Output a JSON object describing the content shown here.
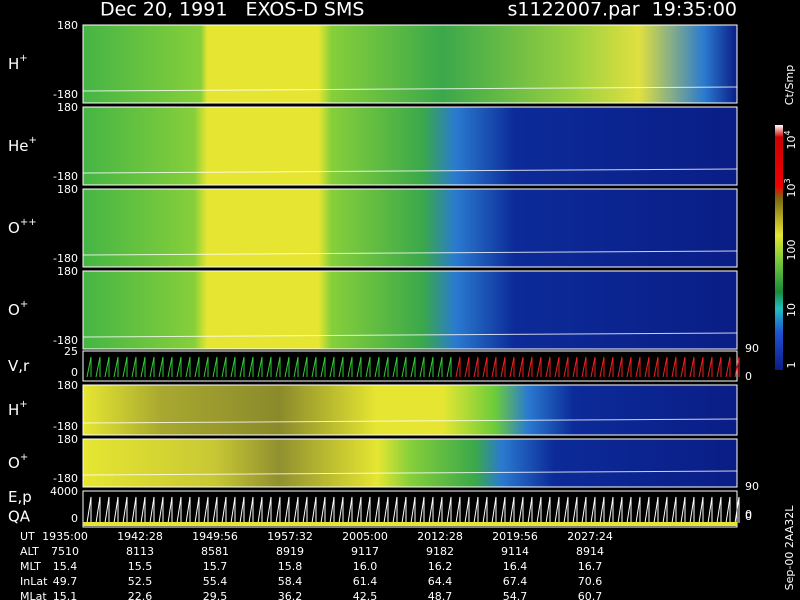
{
  "header": {
    "title": "Dec 20, 1991   EXOS-D SMS",
    "file": "s1122007.par  19:35:00"
  },
  "panels": [
    {
      "label": "H",
      "sup": "+",
      "ticks": [
        "180",
        "-180"
      ]
    },
    {
      "label": "He",
      "sup": "+",
      "ticks": [
        "180",
        "-180"
      ]
    },
    {
      "label": "O",
      "sup": "++",
      "ticks": [
        "180",
        "-180"
      ]
    },
    {
      "label": "O",
      "sup": "+",
      "ticks": [
        "180",
        "-180"
      ],
      "right": [
        "90",
        "0"
      ]
    },
    {
      "label": "V,r",
      "ticks": [
        "25",
        "0"
      ]
    },
    {
      "label": "H",
      "sup": "+",
      "ticks": [
        "180",
        "-180"
      ]
    },
    {
      "label": "O",
      "sup": "+",
      "ticks": [
        "180",
        "-180"
      ],
      "right": [
        "90",
        "0"
      ]
    },
    {
      "label": "E,p",
      "label2": "QA",
      "ticks": [
        "4000",
        "0"
      ],
      "right": [
        "0"
      ]
    }
  ],
  "colorbar": {
    "unit": "Ct/Smp",
    "labels": [
      {
        "base": "10",
        "exp": "4"
      },
      {
        "base": "10",
        "exp": "3"
      },
      {
        "base": "100"
      },
      {
        "base": "10"
      },
      {
        "base": "1"
      }
    ]
  },
  "table": {
    "rows": [
      [
        "UT",
        "1935:00",
        "1942:28",
        "1949:56",
        "1957:32",
        "2005:00",
        "2012:28",
        "2019:56",
        "2027:24"
      ],
      [
        "ALT",
        "7510",
        "8113",
        "8581",
        "8919",
        "9117",
        "9182",
        "9114",
        "8914"
      ],
      [
        "MLT",
        "15.4",
        "15.5",
        "15.7",
        "15.8",
        "16.0",
        "16.2",
        "16.4",
        "16.7"
      ],
      [
        "InLat",
        "49.7",
        "52.5",
        "55.4",
        "58.4",
        "61.4",
        "64.4",
        "67.4",
        "70.6"
      ],
      [
        "MLat",
        "15.1",
        "22.6",
        "29.5",
        "36.2",
        "42.5",
        "48.7",
        "54.7",
        "60.7"
      ]
    ]
  },
  "footer": "Sep-00 2AA32L"
}
